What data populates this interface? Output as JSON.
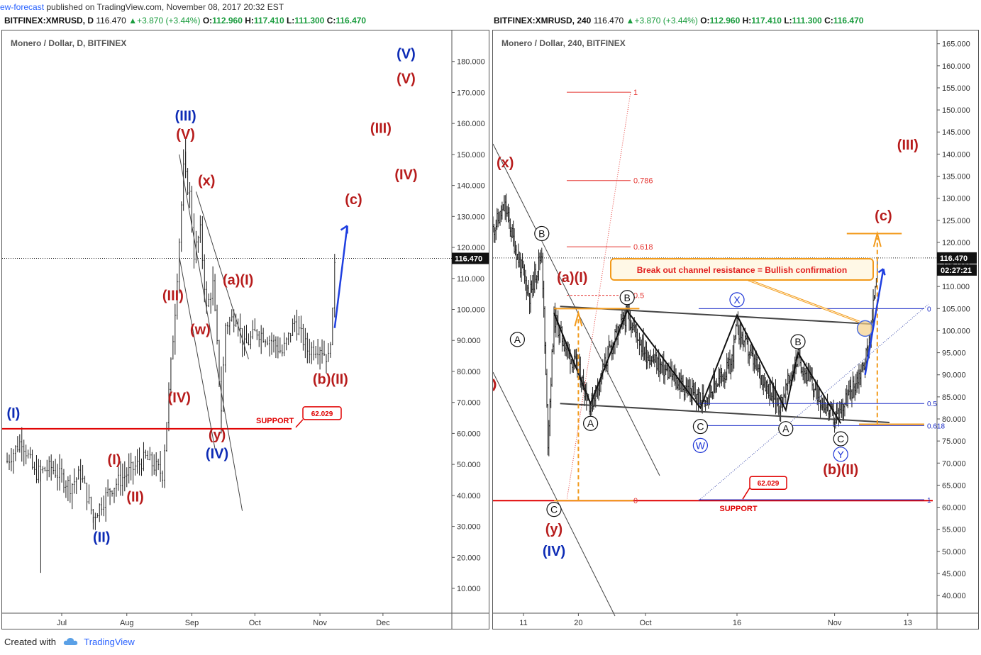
{
  "header": {
    "author": "ew-forecast",
    "published": "published on TradingView.com, November 08, 2017 20:32 EST"
  },
  "quote_left": {
    "symbol": "BITFINEX:XMRUSD, D",
    "last": "116.470",
    "arrow": "▲",
    "change": "+3.870 (+3.44%)",
    "o_label": "O:",
    "o": "112.960",
    "h_label": "H:",
    "h": "117.410",
    "l_label": "L:",
    "l": "111.300",
    "c_label": "C:",
    "c": "116.470"
  },
  "quote_right": {
    "symbol": "BITFINEX:XMRUSD, 240",
    "last": "116.470",
    "arrow": "▲",
    "change": "+3.870 (+3.44%)",
    "o_label": "O:",
    "o": "112.960",
    "h_label": "H:",
    "h": "117.410",
    "l_label": "L:",
    "l": "111.300",
    "c_label": "C:",
    "c": "116.470"
  },
  "footer": {
    "created_with": "Created with",
    "brand": "TradingView"
  },
  "colors": {
    "wave_red": "#b71c1c",
    "wave_blue": "#0d2bb5",
    "support_red": "#e00000",
    "orange": "#f29a1b",
    "candle": "#1c1c1c"
  },
  "chart_data": [
    {
      "type": "candlestick",
      "title": "Monero / Dollar, D, BITFINEX",
      "x_ticks": [
        "Jul",
        "Aug",
        "Sep",
        "Oct",
        "Nov",
        "Dec"
      ],
      "y_ticks": [
        "10.000",
        "20.000",
        "30.000",
        "40.000",
        "50.000",
        "60.000",
        "70.000",
        "80.000",
        "90.000",
        "100.000",
        "110.000",
        "120.000",
        "130.000",
        "140.000",
        "150.000",
        "160.000",
        "170.000",
        "180.000"
      ],
      "ylim": [
        2,
        190
      ],
      "last_price_label": "116.470",
      "close_path": [
        {
          "date": "2017-06-05",
          "close": 51
        },
        {
          "date": "2017-06-12",
          "close": 58
        },
        {
          "date": "2017-06-18",
          "close": 47
        },
        {
          "date": "2017-06-26",
          "close": 49
        },
        {
          "date": "2017-07-05",
          "close": 43
        },
        {
          "date": "2017-07-10",
          "close": 47
        },
        {
          "date": "2017-07-16",
          "close": 33
        },
        {
          "date": "2017-07-24",
          "close": 42
        },
        {
          "date": "2017-08-01",
          "close": 47
        },
        {
          "date": "2017-08-10",
          "close": 52
        },
        {
          "date": "2017-08-18",
          "close": 47
        },
        {
          "date": "2017-08-21",
          "close": 73
        },
        {
          "date": "2017-08-24",
          "close": 100
        },
        {
          "date": "2017-08-28",
          "close": 145
        },
        {
          "date": "2017-08-31",
          "close": 137
        },
        {
          "date": "2017-09-02",
          "close": 118
        },
        {
          "date": "2017-09-05",
          "close": 125
        },
        {
          "date": "2017-09-08",
          "close": 100
        },
        {
          "date": "2017-09-11",
          "close": 108
        },
        {
          "date": "2017-09-15",
          "close": 68
        },
        {
          "date": "2017-09-17",
          "close": 95
        },
        {
          "date": "2017-09-22",
          "close": 98
        },
        {
          "date": "2017-09-26",
          "close": 88
        },
        {
          "date": "2017-10-02",
          "close": 93
        },
        {
          "date": "2017-10-09",
          "close": 90
        },
        {
          "date": "2017-10-14",
          "close": 86
        },
        {
          "date": "2017-10-20",
          "close": 96
        },
        {
          "date": "2017-10-26",
          "close": 87
        },
        {
          "date": "2017-11-01",
          "close": 88
        },
        {
          "date": "2017-11-05",
          "close": 84
        },
        {
          "date": "2017-11-07",
          "close": 98
        },
        {
          "date": "2017-11-08",
          "close": 116.47
        }
      ],
      "lows": [
        {
          "date": "2017-06-21",
          "low": 15
        },
        {
          "date": "2017-07-16",
          "low": 29
        },
        {
          "date": "2017-09-15",
          "low": 60
        }
      ],
      "highs": [
        {
          "date": "2017-08-29",
          "high": 155
        }
      ],
      "support": {
        "label": "SUPPORT",
        "value": "62.029",
        "price": 61.5
      },
      "forecast_arrow": [
        {
          "date": "2017-11-08",
          "price": 94
        },
        {
          "date": "2017-11-14",
          "price": 127
        }
      ],
      "trendlines": [
        {
          "from": {
            "date": "2017-08-26",
            "price": 150
          },
          "to": {
            "date": "2017-09-25",
            "price": 35
          }
        },
        {
          "from": {
            "date": "2017-08-26",
            "price": 117
          },
          "to": {
            "date": "2017-09-12",
            "price": 55
          }
        },
        {
          "from": {
            "date": "2017-09-03",
            "price": 138
          },
          "to": {
            "date": "2017-09-28",
            "price": 84
          }
        }
      ],
      "wave_labels": [
        {
          "text": "(I)",
          "color": "blue",
          "date": "2017-06-08",
          "price": 65
        },
        {
          "text": "(I)",
          "color": "red",
          "date": "2017-07-26",
          "price": 50
        },
        {
          "text": "(II)",
          "color": "red",
          "date": "2017-08-05",
          "price": 38
        },
        {
          "text": "(II)",
          "color": "blue",
          "date": "2017-07-20",
          "price": 25
        },
        {
          "text": "(III)",
          "color": "red",
          "date": "2017-08-23",
          "price": 103
        },
        {
          "text": "(IV)",
          "color": "red",
          "date": "2017-08-26",
          "price": 70
        },
        {
          "text": "(III)",
          "color": "blue",
          "date": "2017-08-29",
          "price": 161
        },
        {
          "text": "(V)",
          "color": "red",
          "date": "2017-08-29",
          "price": 155
        },
        {
          "text": "(x)",
          "color": "red",
          "date": "2017-09-08",
          "price": 140
        },
        {
          "text": "(w)",
          "color": "red",
          "date": "2017-09-05",
          "price": 92
        },
        {
          "text": "(y)",
          "color": "red",
          "date": "2017-09-13",
          "price": 58
        },
        {
          "text": "(IV)",
          "color": "blue",
          "date": "2017-09-13",
          "price": 52
        },
        {
          "text": "(a)(I)",
          "color": "red",
          "date": "2017-09-23",
          "price": 108
        },
        {
          "text": "(b)(II)",
          "color": "red",
          "date": "2017-11-06",
          "price": 76
        },
        {
          "text": "(c)",
          "color": "red",
          "date": "2017-11-17",
          "price": 134
        },
        {
          "text": "(III)",
          "color": "red",
          "date": "2017-11-30",
          "price": 157
        },
        {
          "text": "(IV)",
          "color": "red",
          "date": "2017-12-12",
          "price": 142
        },
        {
          "text": "(V)",
          "color": "blue",
          "date": "2017-12-12",
          "price": 181
        },
        {
          "text": "(V)",
          "color": "red",
          "date": "2017-12-12",
          "price": 173
        }
      ]
    },
    {
      "type": "candlestick",
      "title": "Monero / Dollar, 240, BITFINEX",
      "x_ticks": [
        "11",
        "20",
        "Oct",
        "16",
        "Nov",
        "13"
      ],
      "y_ticks": [
        "40.000",
        "45.000",
        "50.000",
        "55.000",
        "60.000",
        "65.000",
        "70.000",
        "75.000",
        "80.000",
        "85.000",
        "90.000",
        "95.000",
        "100.000",
        "105.000",
        "110.000",
        "115.000",
        "120.000",
        "125.000",
        "130.000",
        "135.000",
        "140.000",
        "145.000",
        "150.000",
        "155.000",
        "160.000",
        "165.000"
      ],
      "ylim": [
        36,
        168
      ],
      "last_price_label": "116.470",
      "countdown_label": "02:27:21",
      "close_path": [
        {
          "date": "2017-09-06",
          "close": 123
        },
        {
          "date": "2017-09-08",
          "close": 128
        },
        {
          "date": "2017-09-10",
          "close": 117
        },
        {
          "date": "2017-09-12",
          "close": 108
        },
        {
          "date": "2017-09-14",
          "close": 118
        },
        {
          "date": "2017-09-15",
          "close": 75
        },
        {
          "date": "2017-09-16",
          "close": 103
        },
        {
          "date": "2017-09-18",
          "close": 96
        },
        {
          "date": "2017-09-20",
          "close": 91
        },
        {
          "date": "2017-09-22",
          "close": 83
        },
        {
          "date": "2017-09-25",
          "close": 95
        },
        {
          "date": "2017-09-28",
          "close": 104
        },
        {
          "date": "2017-10-01",
          "close": 95
        },
        {
          "date": "2017-10-05",
          "close": 90
        },
        {
          "date": "2017-10-10",
          "close": 84
        },
        {
          "date": "2017-10-15",
          "close": 92
        },
        {
          "date": "2017-10-16",
          "close": 101
        },
        {
          "date": "2017-10-19",
          "close": 92
        },
        {
          "date": "2017-10-23",
          "close": 83
        },
        {
          "date": "2017-10-26",
          "close": 94
        },
        {
          "date": "2017-10-29",
          "close": 86
        },
        {
          "date": "2017-11-01",
          "close": 80
        },
        {
          "date": "2017-11-04",
          "close": 87
        },
        {
          "date": "2017-11-06",
          "close": 93
        },
        {
          "date": "2017-11-07",
          "close": 100
        },
        {
          "date": "2017-11-08",
          "close": 116.47
        }
      ],
      "fib_left": [
        {
          "label": "1",
          "price": 154
        },
        {
          "label": "0.786",
          "price": 134
        },
        {
          "label": "0.618",
          "price": 119
        },
        {
          "label": "0.5",
          "price": 108
        },
        {
          "label": "0",
          "price": 61.5
        }
      ],
      "fib_right": [
        {
          "label": "0",
          "price": 105
        },
        {
          "label": "0.5",
          "price": 83.5
        },
        {
          "label": "0.618",
          "price": 78.5
        },
        {
          "label": "1",
          "price": 61.7
        }
      ],
      "channel": [
        {
          "from": {
            "date": "2017-09-17",
            "price": 105.5
          },
          "to": {
            "date": "2017-11-07",
            "price": 101.5
          }
        },
        {
          "from": {
            "date": "2017-09-17",
            "price": 83.5
          },
          "to": {
            "date": "2017-11-10",
            "price": 79.2
          }
        }
      ],
      "zigzag": [
        {
          "date": "2017-09-16",
          "price": 104
        },
        {
          "date": "2017-09-22",
          "price": 83.5
        },
        {
          "date": "2017-09-28",
          "price": 104.5
        },
        {
          "date": "2017-10-10",
          "price": 82.5
        },
        {
          "date": "2017-10-16",
          "price": 103.5
        },
        {
          "date": "2017-10-24",
          "price": 82
        },
        {
          "date": "2017-10-26",
          "price": 95
        },
        {
          "date": "2017-11-02",
          "price": 79
        }
      ],
      "support": {
        "label": "SUPPORT",
        "value": "62.029",
        "price": 61.5
      },
      "target_line": {
        "from": "2017-11-03",
        "to": "2017-11-12",
        "price": 122
      },
      "callout": {
        "text": "Break out channel resistance = Bullish confirmation"
      },
      "circle_labels": [
        {
          "text": "A",
          "color": "black",
          "date": "2017-09-10",
          "price": 98
        },
        {
          "text": "B",
          "color": "black",
          "date": "2017-09-14",
          "price": 122
        },
        {
          "text": "C",
          "color": "black",
          "date": "2017-09-16",
          "price": 59.5
        },
        {
          "text": "A",
          "color": "black",
          "date": "2017-09-22",
          "price": 79
        },
        {
          "text": "B",
          "color": "black",
          "date": "2017-09-28",
          "price": 107.5
        },
        {
          "text": "C",
          "color": "black",
          "date": "2017-10-10",
          "price": 78.3
        },
        {
          "text": "W",
          "color": "blue",
          "date": "2017-10-10",
          "price": 74
        },
        {
          "text": "X",
          "color": "blue",
          "date": "2017-10-16",
          "price": 107
        },
        {
          "text": "B",
          "color": "black",
          "date": "2017-10-26",
          "price": 97.5
        },
        {
          "text": "A",
          "color": "black",
          "date": "2017-10-24",
          "price": 77.8
        },
        {
          "text": "C",
          "color": "black",
          "date": "2017-11-02",
          "price": 75.5
        },
        {
          "text": "Y",
          "color": "blue",
          "date": "2017-11-02",
          "price": 72
        }
      ],
      "wave_labels": [
        {
          "text": "(x)",
          "color": "red",
          "date": "2017-09-08",
          "price": 137
        },
        {
          "text": "(a)(I)",
          "color": "red",
          "date": "2017-09-19",
          "price": 111
        },
        {
          "text": "(y)",
          "color": "red",
          "date": "2017-09-16",
          "price": 54
        },
        {
          "text": "(IV)",
          "color": "blue",
          "date": "2017-09-16",
          "price": 49
        },
        {
          "text": "(b)(II)",
          "color": "red",
          "date": "2017-11-02",
          "price": 67.5
        },
        {
          "text": "(c)",
          "color": "red",
          "date": "2017-11-09",
          "price": 125
        },
        {
          "text": "(III)",
          "color": "red",
          "date": "2017-11-13",
          "price": 141
        }
      ]
    }
  ]
}
